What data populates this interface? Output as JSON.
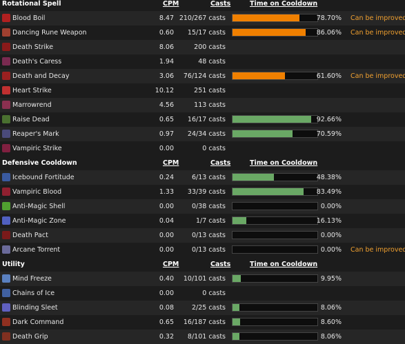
{
  "sections": [
    {
      "title": "Rotational Spell",
      "columns": [
        "CPM",
        "Casts",
        "Time on Cooldown"
      ],
      "rows": [
        {
          "name": "Blood Boil",
          "cpm": "8.47",
          "casts": "210/267 casts",
          "uptime": 78.7,
          "uptime_label": "78.70%",
          "note": "Can be improved."
        },
        {
          "name": "Dancing Rune Weapon",
          "cpm": "0.60",
          "casts": "15/17 casts",
          "uptime": 86.06,
          "uptime_label": "86.06%",
          "note": "Can be improved."
        },
        {
          "name": "Death Strike",
          "cpm": "8.06",
          "casts": "200 casts"
        },
        {
          "name": "Death's Caress",
          "cpm": "1.94",
          "casts": "48 casts"
        },
        {
          "name": "Death and Decay",
          "cpm": "3.06",
          "casts": "76/124 casts",
          "uptime": 61.6,
          "uptime_label": "61.60%",
          "note": "Can be improved."
        },
        {
          "name": "Heart Strike",
          "cpm": "10.12",
          "casts": "251 casts"
        },
        {
          "name": "Marrowrend",
          "cpm": "4.56",
          "casts": "113 casts"
        },
        {
          "name": "Raise Dead",
          "cpm": "0.65",
          "casts": "16/17 casts",
          "uptime": 92.66,
          "uptime_label": "92.66%"
        },
        {
          "name": "Reaper's Mark",
          "cpm": "0.97",
          "casts": "24/34 casts",
          "uptime": 70.59,
          "uptime_label": "70.59%"
        },
        {
          "name": "Vampiric Strike",
          "cpm": "0.00",
          "casts": "0 casts"
        }
      ]
    },
    {
      "title": "Defensive Cooldown",
      "columns": [
        "CPM",
        "Casts",
        "Time on Cooldown"
      ],
      "rows": [
        {
          "name": "Icebound Fortitude",
          "cpm": "0.24",
          "casts": "6/13 casts",
          "uptime": 48.38,
          "uptime_label": "48.38%"
        },
        {
          "name": "Vampiric Blood",
          "cpm": "1.33",
          "casts": "33/39 casts",
          "uptime": 83.49,
          "uptime_label": "83.49%"
        },
        {
          "name": "Anti-Magic Shell",
          "cpm": "0.00",
          "casts": "0/38 casts",
          "uptime": 0,
          "uptime_label": "0.00%"
        },
        {
          "name": "Anti-Magic Zone",
          "cpm": "0.04",
          "casts": "1/7 casts",
          "uptime": 16.13,
          "uptime_label": "16.13%"
        },
        {
          "name": "Death Pact",
          "cpm": "0.00",
          "casts": "0/13 casts",
          "uptime": 0,
          "uptime_label": "0.00%"
        },
        {
          "name": "Arcane Torrent",
          "cpm": "0.00",
          "casts": "0/13 casts",
          "uptime": 0,
          "uptime_label": "0.00%",
          "note": "Can be improved."
        }
      ]
    },
    {
      "title": "Utility",
      "columns": [
        "CPM",
        "Casts",
        "Time on Cooldown"
      ],
      "rows": [
        {
          "name": "Mind Freeze",
          "cpm": "0.40",
          "casts": "10/101 casts",
          "uptime": 9.95,
          "uptime_label": "9.95%"
        },
        {
          "name": "Chains of Ice",
          "cpm": "0.00",
          "casts": "0 casts"
        },
        {
          "name": "Blinding Sleet",
          "cpm": "0.08",
          "casts": "2/25 casts",
          "uptime": 8.06,
          "uptime_label": "8.06%"
        },
        {
          "name": "Dark Command",
          "cpm": "0.65",
          "casts": "16/187 casts",
          "uptime": 8.6,
          "uptime_label": "8.60%"
        },
        {
          "name": "Death Grip",
          "cpm": "0.32",
          "casts": "8/101 casts",
          "uptime": 8.06,
          "uptime_label": "8.06%"
        }
      ]
    }
  ]
}
